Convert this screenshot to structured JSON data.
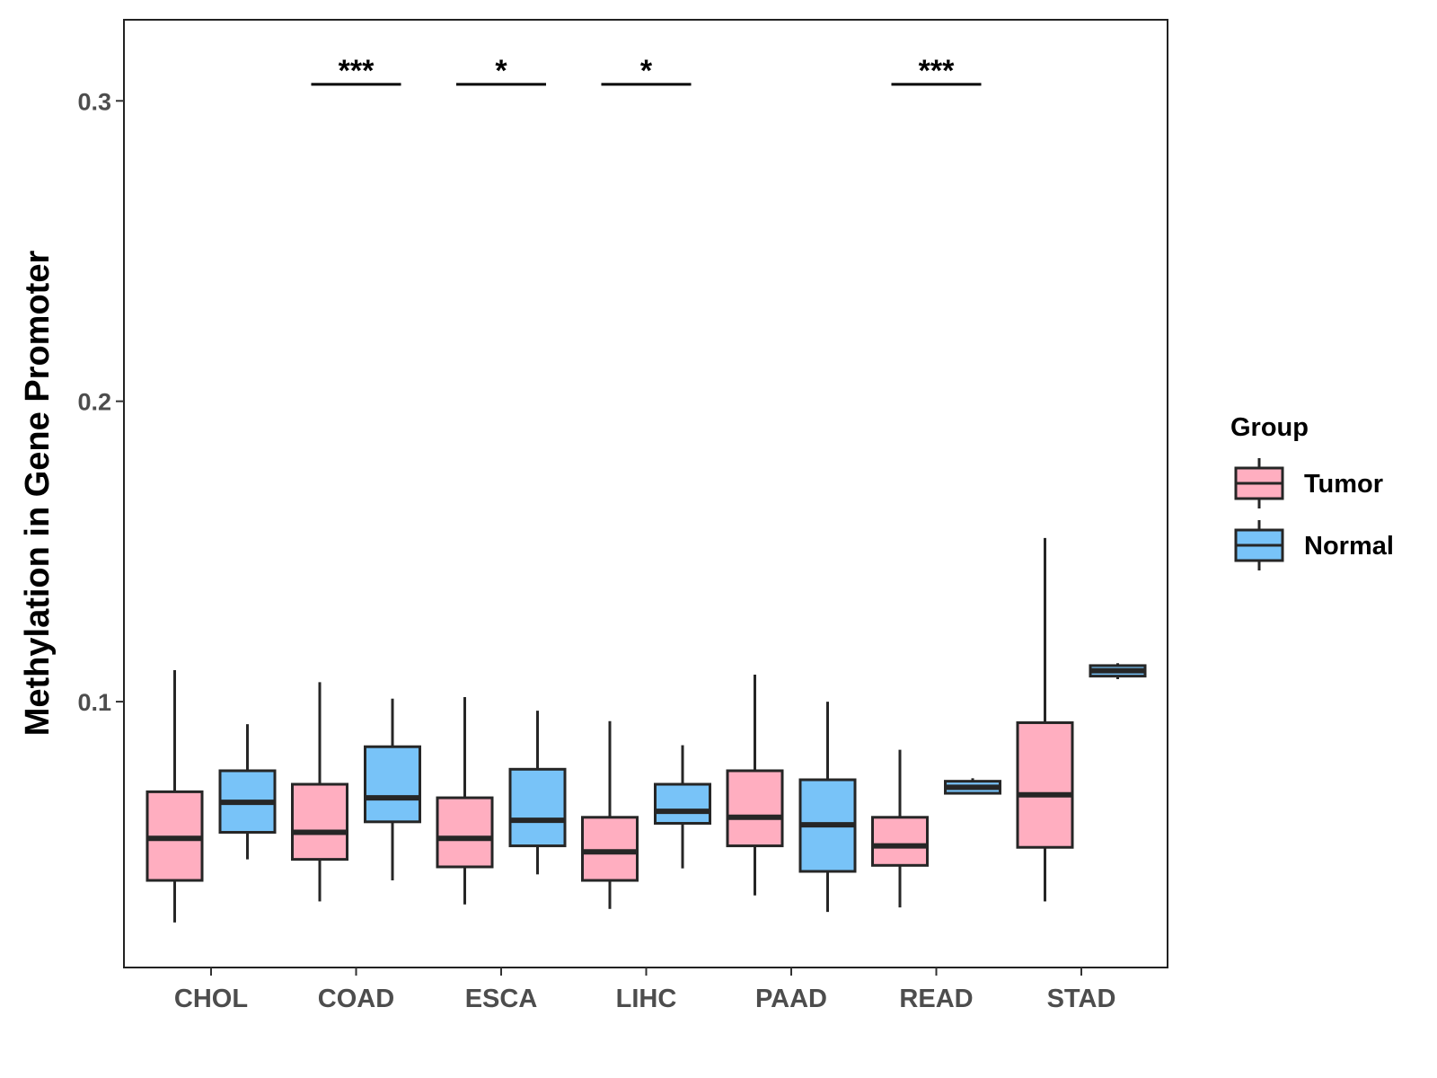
{
  "chart_data": {
    "type": "boxplot",
    "title": "",
    "xlabel": "",
    "ylabel": "Methylation in Gene Promoter",
    "ylim": [
      0.0115,
      0.327
    ],
    "yticks": [
      0.1,
      0.2,
      0.3
    ],
    "ytick_labels": [
      "0.1",
      "0.2",
      "0.3"
    ],
    "grid": false,
    "categories": [
      "CHOL",
      "COAD",
      "ESCA",
      "LIHC",
      "PAAD",
      "READ",
      "STAD"
    ],
    "legend": {
      "title": "Group",
      "position": "right",
      "entries": [
        {
          "name": "Tumor",
          "color": "#FFAEC0"
        },
        {
          "name": "Normal",
          "color": "#78C3F8"
        }
      ]
    },
    "series": [
      {
        "name": "Tumor",
        "color": "#FFAEC0",
        "boxes": [
          {
            "category": "CHOL",
            "whisker_low": 0.0265,
            "q1": 0.0405,
            "median": 0.0545,
            "q3": 0.07,
            "whisker_high": 0.1105
          },
          {
            "category": "COAD",
            "whisker_low": 0.0335,
            "q1": 0.0475,
            "median": 0.0565,
            "q3": 0.0725,
            "whisker_high": 0.1065
          },
          {
            "category": "ESCA",
            "whisker_low": 0.0325,
            "q1": 0.045,
            "median": 0.0545,
            "q3": 0.068,
            "whisker_high": 0.1015
          },
          {
            "category": "LIHC",
            "whisker_low": 0.031,
            "q1": 0.0405,
            "median": 0.05,
            "q3": 0.0615,
            "whisker_high": 0.0935
          },
          {
            "category": "PAAD",
            "whisker_low": 0.0355,
            "q1": 0.052,
            "median": 0.0615,
            "q3": 0.077,
            "whisker_high": 0.109
          },
          {
            "category": "READ",
            "whisker_low": 0.0315,
            "q1": 0.0455,
            "median": 0.052,
            "q3": 0.0615,
            "whisker_high": 0.084
          },
          {
            "category": "STAD",
            "whisker_low": 0.0335,
            "q1": 0.0515,
            "median": 0.069,
            "q3": 0.093,
            "whisker_high": 0.1545
          }
        ]
      },
      {
        "name": "Normal",
        "color": "#78C3F8",
        "boxes": [
          {
            "category": "CHOL",
            "whisker_low": 0.0475,
            "q1": 0.0565,
            "median": 0.0665,
            "q3": 0.077,
            "whisker_high": 0.0925
          },
          {
            "category": "COAD",
            "whisker_low": 0.0405,
            "q1": 0.06,
            "median": 0.068,
            "q3": 0.085,
            "whisker_high": 0.101
          },
          {
            "category": "ESCA",
            "whisker_low": 0.0425,
            "q1": 0.052,
            "median": 0.0605,
            "q3": 0.0775,
            "whisker_high": 0.097
          },
          {
            "category": "LIHC",
            "whisker_low": 0.0445,
            "q1": 0.0595,
            "median": 0.0635,
            "q3": 0.0725,
            "whisker_high": 0.0855
          },
          {
            "category": "PAAD",
            "whisker_low": 0.03,
            "q1": 0.0435,
            "median": 0.059,
            "q3": 0.074,
            "whisker_high": 0.1
          },
          {
            "category": "READ",
            "whisker_low": 0.0695,
            "q1": 0.0695,
            "median": 0.0715,
            "q3": 0.0735,
            "whisker_high": 0.0745
          },
          {
            "category": "STAD",
            "whisker_low": 0.1075,
            "q1": 0.1085,
            "median": 0.1103,
            "q3": 0.112,
            "whisker_high": 0.1128
          }
        ]
      }
    ],
    "annotations": [
      {
        "category": "COAD",
        "text": "***",
        "y": 0.3055
      },
      {
        "category": "ESCA",
        "text": "*",
        "y": 0.3055
      },
      {
        "category": "LIHC",
        "text": "*",
        "y": 0.3055
      },
      {
        "category": "READ",
        "text": "***",
        "y": 0.3055
      }
    ]
  }
}
